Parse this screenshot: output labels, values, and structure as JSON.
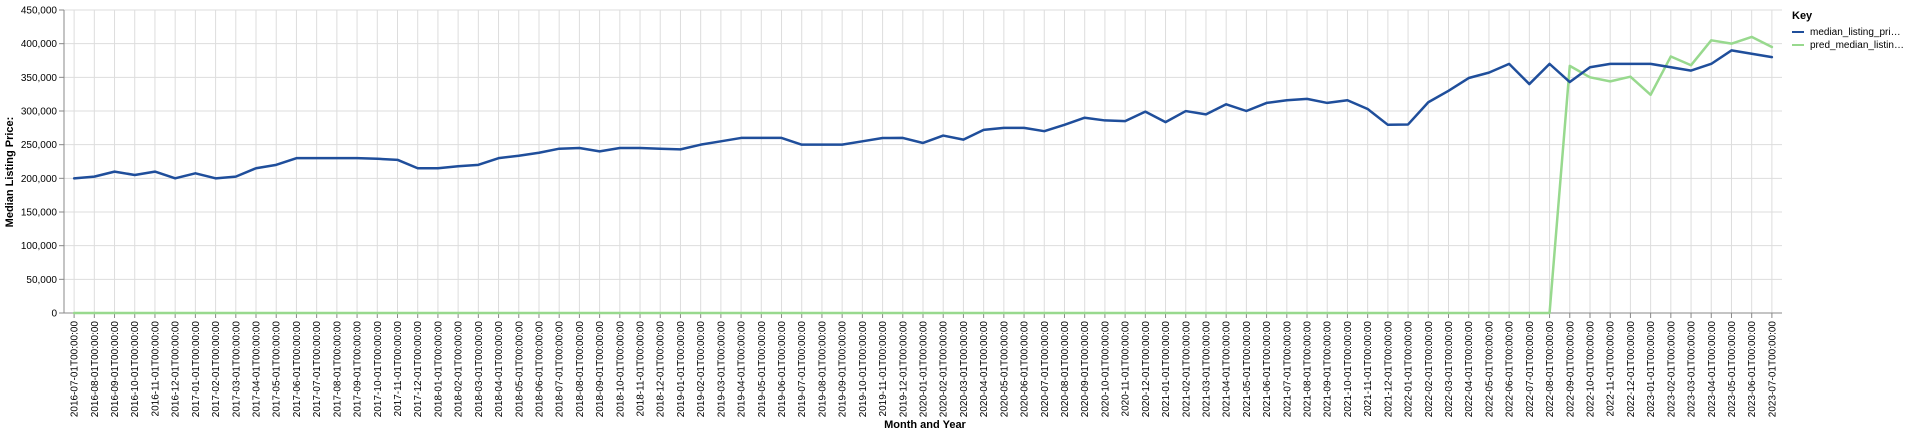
{
  "chart_data": {
    "type": "line",
    "xlabel": "Month and Year",
    "ylabel": "Median Listing Price:",
    "ylim": [
      0,
      450000
    ],
    "y_ticks": [
      0,
      50000,
      100000,
      150000,
      200000,
      250000,
      300000,
      350000,
      400000,
      450000
    ],
    "y_tick_labels": [
      "0",
      "50,000",
      "100,000",
      "150,000",
      "200,000",
      "250,000",
      "300,000",
      "350,000",
      "400,000",
      "450,000"
    ],
    "grid": true,
    "legend": {
      "title": "Key",
      "position": "top-right",
      "entries": [
        "median_listing_pri…",
        "pred_median_listin…"
      ]
    },
    "x": [
      "2016-07-01T00:00:00",
      "2016-08-01T00:00:00",
      "2016-09-01T00:00:00",
      "2016-10-01T00:00:00",
      "2016-11-01T00:00:00",
      "2016-12-01T00:00:00",
      "2017-01-01T00:00:00",
      "2017-02-01T00:00:00",
      "2017-03-01T00:00:00",
      "2017-04-01T00:00:00",
      "2017-05-01T00:00:00",
      "2017-06-01T00:00:00",
      "2017-07-01T00:00:00",
      "2017-08-01T00:00:00",
      "2017-09-01T00:00:00",
      "2017-10-01T00:00:00",
      "2017-11-01T00:00:00",
      "2017-12-01T00:00:00",
      "2018-01-01T00:00:00",
      "2018-02-01T00:00:00",
      "2018-03-01T00:00:00",
      "2018-04-01T00:00:00",
      "2018-05-01T00:00:00",
      "2018-06-01T00:00:00",
      "2018-07-01T00:00:00",
      "2018-08-01T00:00:00",
      "2018-09-01T00:00:00",
      "2018-10-01T00:00:00",
      "2018-11-01T00:00:00",
      "2018-12-01T00:00:00",
      "2019-01-01T00:00:00",
      "2019-02-01T00:00:00",
      "2019-03-01T00:00:00",
      "2019-04-01T00:00:00",
      "2019-05-01T00:00:00",
      "2019-06-01T00:00:00",
      "2019-07-01T00:00:00",
      "2019-08-01T00:00:00",
      "2019-09-01T00:00:00",
      "2019-10-01T00:00:00",
      "2019-11-01T00:00:00",
      "2019-12-01T00:00:00",
      "2020-01-01T00:00:00",
      "2020-02-01T00:00:00",
      "2020-03-01T00:00:00",
      "2020-04-01T00:00:00",
      "2020-05-01T00:00:00",
      "2020-06-01T00:00:00",
      "2020-07-01T00:00:00",
      "2020-08-01T00:00:00",
      "2020-09-01T00:00:00",
      "2020-10-01T00:00:00",
      "2020-11-01T00:00:00",
      "2020-12-01T00:00:00",
      "2021-01-01T00:00:00",
      "2021-02-01T00:00:00",
      "2021-03-01T00:00:00",
      "2021-04-01T00:00:00",
      "2021-05-01T00:00:00",
      "2021-06-01T00:00:00",
      "2021-07-01T00:00:00",
      "2021-08-01T00:00:00",
      "2021-09-01T00:00:00",
      "2021-10-01T00:00:00",
      "2021-11-01T00:00:00",
      "2021-12-01T00:00:00",
      "2022-01-01T00:00:00",
      "2022-02-01T00:00:00",
      "2022-03-01T00:00:00",
      "2022-04-01T00:00:00",
      "2022-05-01T00:00:00",
      "2022-06-01T00:00:00",
      "2022-07-01T00:00:00",
      "2022-08-01T00:00:00",
      "2022-09-01T00:00:00",
      "2022-10-01T00:00:00",
      "2022-11-01T00:00:00",
      "2022-12-01T00:00:00",
      "2023-01-01T00:00:00",
      "2023-02-01T00:00:00",
      "2023-03-01T00:00:00",
      "2023-04-01T00:00:00",
      "2023-05-01T00:00:00",
      "2023-06-01T00:00:00",
      "2023-07-01T00:00:00"
    ],
    "series": [
      {
        "name": "median_listing_pri…",
        "color": "#1f4e9b",
        "values": [
          200000,
          202500,
          210000,
          205000,
          210000,
          200000,
          207500,
          200000,
          202500,
          215000,
          220000,
          230000,
          230000,
          230000,
          230000,
          229000,
          227500,
          215000,
          215000,
          218000,
          220000,
          230000,
          233500,
          238000,
          244000,
          245000,
          240000,
          245000,
          245000,
          244000,
          243000,
          250000,
          255000,
          260000,
          260000,
          260000,
          250000,
          250000,
          250000,
          255000,
          259900,
          260000,
          252500,
          263500,
          257500,
          272000,
          275000,
          275000,
          270000,
          279500,
          290000,
          286000,
          285000,
          299000,
          283500,
          299900,
          295000,
          310000,
          300000,
          312000,
          316000,
          318000,
          312000,
          316000,
          303000,
          279500,
          280000,
          313000,
          330000,
          349000,
          357000,
          370000,
          340000,
          370000,
          343000,
          365000,
          370000,
          370000,
          370000,
          365000,
          360000,
          370000,
          390000,
          385000,
          380000
        ]
      },
      {
        "name": "pred_median_listin…",
        "color": "#98d98e",
        "values": [
          0,
          0,
          0,
          0,
          0,
          0,
          0,
          0,
          0,
          0,
          0,
          0,
          0,
          0,
          0,
          0,
          0,
          0,
          0,
          0,
          0,
          0,
          0,
          0,
          0,
          0,
          0,
          0,
          0,
          0,
          0,
          0,
          0,
          0,
          0,
          0,
          0,
          0,
          0,
          0,
          0,
          0,
          0,
          0,
          0,
          0,
          0,
          0,
          0,
          0,
          0,
          0,
          0,
          0,
          0,
          0,
          0,
          0,
          0,
          0,
          0,
          0,
          0,
          0,
          0,
          0,
          0,
          0,
          0,
          0,
          0,
          0,
          0,
          0,
          367000,
          350000,
          344000,
          351000,
          324000,
          381000,
          368000,
          405000,
          400000,
          410000,
          395000
        ]
      }
    ]
  }
}
